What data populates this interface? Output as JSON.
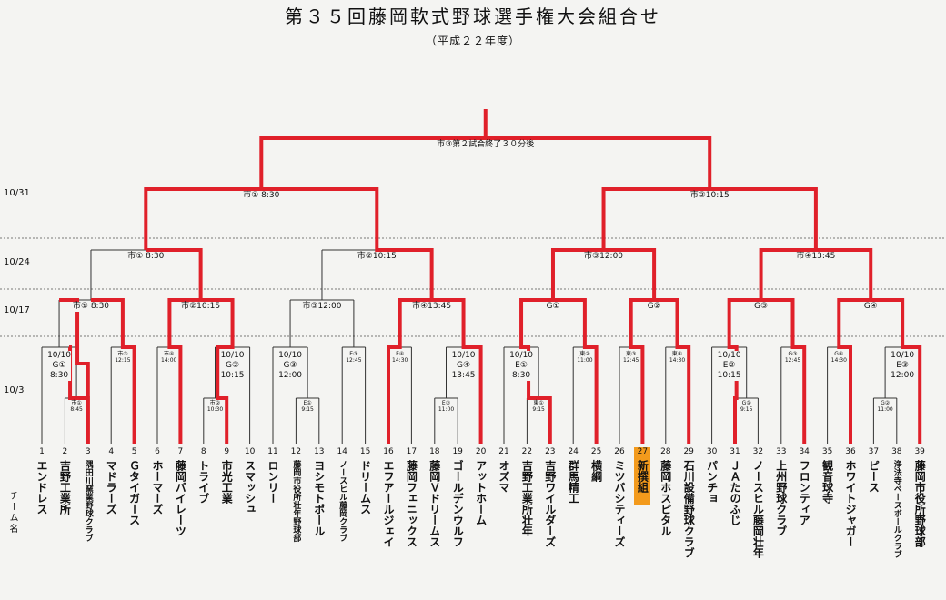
{
  "title": "第３５回藤岡軟式野球選手権大会組合せ",
  "subtitle": "（平成２２年度）",
  "side_label": "チーム名",
  "rounds": [
    {
      "date": "10/31"
    },
    {
      "date": "10/24"
    },
    {
      "date": "10/17"
    },
    {
      "date": "10/3"
    }
  ],
  "final_label": "市③第２試合終了３０分後",
  "semi_labels": [
    "市① 8:30",
    "市②10:15"
  ],
  "qf_labels": [
    "市① 8:30",
    "市②10:15",
    "市③12:00",
    "市④13:45"
  ],
  "r3_labels": [
    "市① 8:30",
    "市②10:15",
    "市③12:00",
    "市④13:45",
    "G①",
    "G②",
    "G③",
    "G④"
  ],
  "r2_slots": [
    "10/10\nG①\n8:30",
    "市③\n12:15",
    "市④\n14:00",
    "10/10\nG②\n10:15",
    "10/10\nG③\n12:00",
    "E③\n12:45",
    "E④\n14:30",
    "10/10\nG④\n13:45",
    "10/10\nE①\n8:30",
    "東②\n11:00",
    "東③\n12:45",
    "東④\n14:30",
    "10/10\nE②\n10:15",
    "G③\n12:45",
    "G④\n14:30",
    "10/10\nE③\n12:00"
  ],
  "r1_slots": [
    "市①\n8:45",
    "市②\n10:30",
    "E①\n9:15",
    "E②\n11:00",
    "東①\n9:15",
    "G①\n9:15",
    "G②\n11:00"
  ],
  "teams": [
    {
      "num": "1",
      "name": "エンドレス"
    },
    {
      "num": "2",
      "name": "吉野工業所"
    },
    {
      "num": "3",
      "name": "隅田川窯業野球クラブ"
    },
    {
      "num": "4",
      "name": "マドラーズ"
    },
    {
      "num": "5",
      "name": "Ｇタイガース"
    },
    {
      "num": "6",
      "name": "ホーマーズ"
    },
    {
      "num": "7",
      "name": "藤岡パイレーツ"
    },
    {
      "num": "8",
      "name": "トライブ"
    },
    {
      "num": "9",
      "name": "市光工業"
    },
    {
      "num": "10",
      "name": "スマッシュ"
    },
    {
      "num": "11",
      "name": "ロンリー"
    },
    {
      "num": "12",
      "name": "藤岡市役所壮年野球部"
    },
    {
      "num": "13",
      "name": "ヨシモトポール"
    },
    {
      "num": "14",
      "name": "ノースヒル藤岡クラブ"
    },
    {
      "num": "15",
      "name": "ドリームス"
    },
    {
      "num": "16",
      "name": "エフアールジェイ"
    },
    {
      "num": "17",
      "name": "藤岡フェニックス"
    },
    {
      "num": "18",
      "name": "藤岡Ｖドリームス"
    },
    {
      "num": "19",
      "name": "ゴールデンウルフ"
    },
    {
      "num": "20",
      "name": "アットホーム"
    },
    {
      "num": "21",
      "name": "オズマ"
    },
    {
      "num": "22",
      "name": "吉野工業所壮年"
    },
    {
      "num": "23",
      "name": "吉野ワイルダーズ"
    },
    {
      "num": "24",
      "name": "群馬精工"
    },
    {
      "num": "25",
      "name": "横綱"
    },
    {
      "num": "26",
      "name": "ミツバシティーズ"
    },
    {
      "num": "27",
      "name": "新撰組"
    },
    {
      "num": "28",
      "name": "藤岡ホスピタル"
    },
    {
      "num": "29",
      "name": "石川設備野球クラブ"
    },
    {
      "num": "30",
      "name": "パンチョ"
    },
    {
      "num": "31",
      "name": "ＪＡたのふじ"
    },
    {
      "num": "32",
      "name": "ノースヒル藤岡壮年"
    },
    {
      "num": "33",
      "name": "上州野球クラブ"
    },
    {
      "num": "34",
      "name": "フロンティア"
    },
    {
      "num": "35",
      "name": "観音球寺"
    },
    {
      "num": "36",
      "name": "ホワイトジャガー"
    },
    {
      "num": "37",
      "name": "ピース"
    },
    {
      "num": "38",
      "name": "浄法寺ベースボールクラブ"
    },
    {
      "num": "39",
      "name": "藤岡市役所野球部"
    }
  ],
  "colors": {
    "winner_line": "#e0202a",
    "bracket_line": "#333333",
    "highlight": "#f39a1c"
  }
}
